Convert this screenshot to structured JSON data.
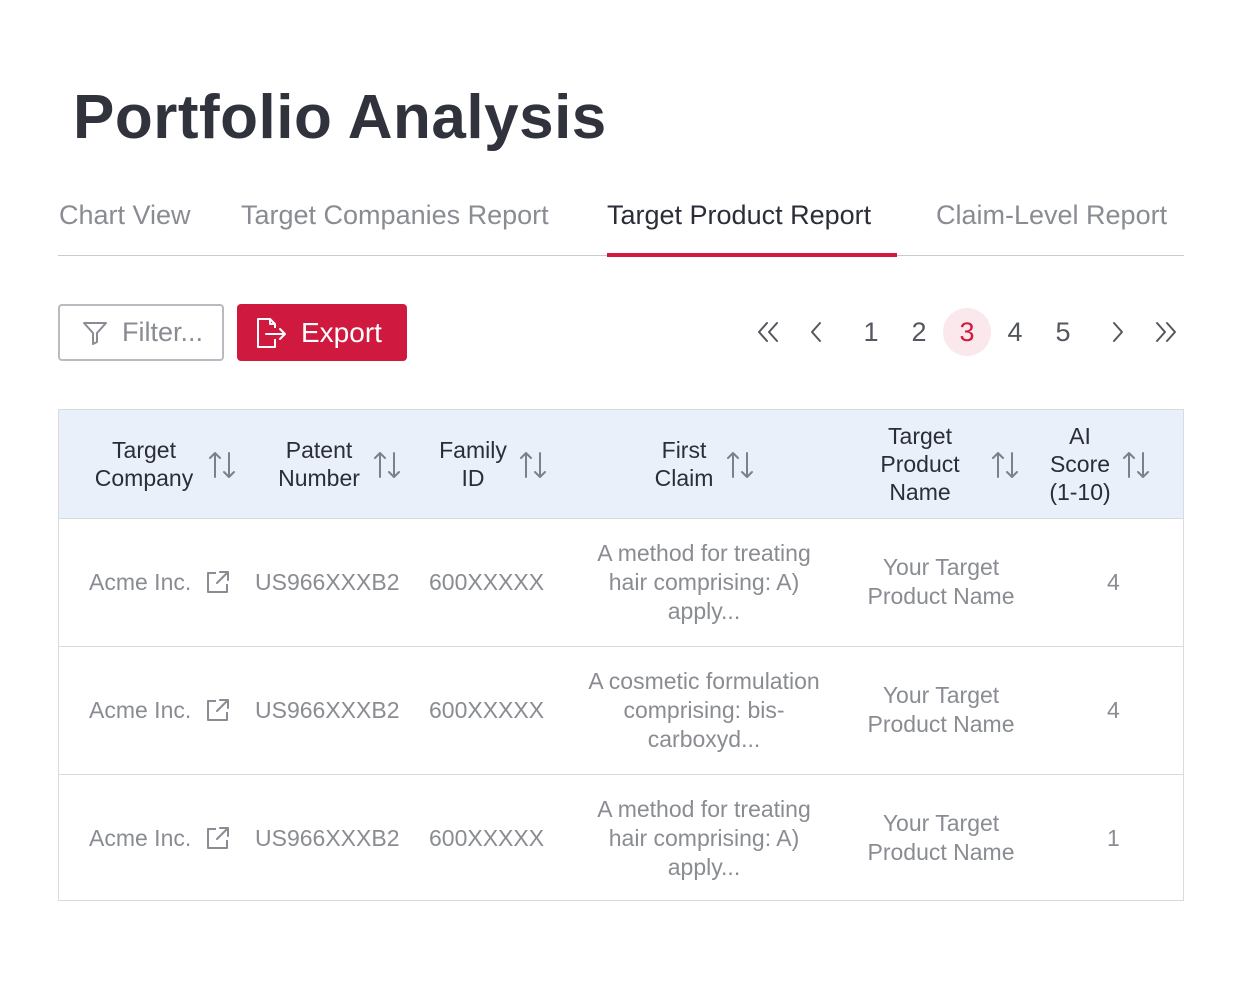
{
  "page": {
    "title": "Portfolio Analysis"
  },
  "tabs": [
    {
      "label": "Chart View",
      "active": false
    },
    {
      "label": "Target Companies Report",
      "active": false
    },
    {
      "label": "Target Product Report",
      "active": true
    },
    {
      "label": "Claim-Level Report",
      "active": false
    }
  ],
  "toolbar": {
    "filter_label": "Filter...",
    "filter_icon": "funnel-icon",
    "export_label": "Export",
    "export_icon": "export-file-icon"
  },
  "pagination": {
    "first_icon": "double-chevron-left-icon",
    "prev_icon": "chevron-left-icon",
    "pages": [
      "1",
      "2",
      "3",
      "4",
      "5"
    ],
    "current_page": "3",
    "next_icon": "chevron-right-icon",
    "last_icon": "double-chevron-right-icon"
  },
  "table": {
    "columns": [
      {
        "line1": "Target",
        "line2": "Company",
        "line3": ""
      },
      {
        "line1": "Patent",
        "line2": "Number",
        "line3": ""
      },
      {
        "line1": "Family",
        "line2": "ID",
        "line3": ""
      },
      {
        "line1": "First",
        "line2": "Claim",
        "line3": ""
      },
      {
        "line1": "Target",
        "line2": "Product",
        "line3": "Name"
      },
      {
        "line1": "AI",
        "line2": "Score",
        "line3": "(1-10)"
      }
    ],
    "rows": [
      {
        "company": "Acme Inc.",
        "patent": "US966XXXB2",
        "family": "600XXXXX",
        "claim": [
          "A method for treating",
          "hair comprising: A)",
          "apply..."
        ],
        "product": [
          "Your Target",
          "Product Name"
        ],
        "score": "4"
      },
      {
        "company": "Acme Inc.",
        "patent": "US966XXXB2",
        "family": "600XXXXX",
        "claim": [
          "A cosmetic formulation",
          "comprising: bis-",
          "carboxyd..."
        ],
        "product": [
          "Your Target",
          "Product Name"
        ],
        "score": "4"
      },
      {
        "company": "Acme Inc.",
        "patent": "US966XXXB2",
        "family": "600XXXXX",
        "claim": [
          "A method for treating",
          "hair comprising: A)",
          "apply..."
        ],
        "product": [
          "Your Target",
          "Product Name"
        ],
        "score": "1"
      }
    ]
  },
  "colors": {
    "accent": "#d0193e",
    "header_bg": "#e9f0f9",
    "muted_text": "#8a8c93"
  }
}
